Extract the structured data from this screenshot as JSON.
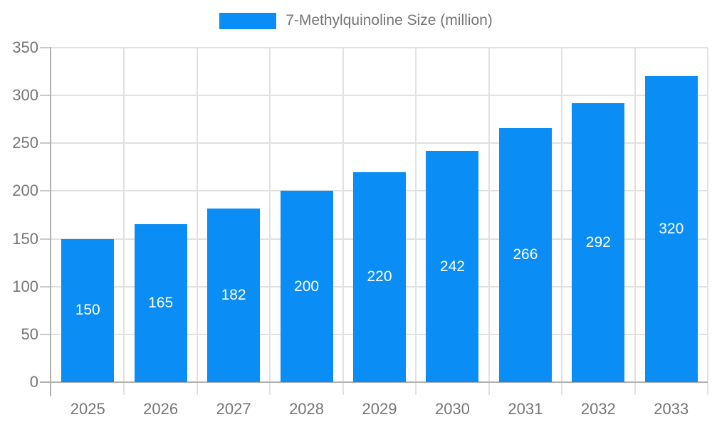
{
  "legend": {
    "label": "7-Methylquinoline Size (million)"
  },
  "colors": {
    "bar": "#0a8df4",
    "grid": "#e1e1e1",
    "axis": "#b0b0b0",
    "y_tick": "#c9c9c9",
    "tick_label": "#757575",
    "value_label": "#ffffff",
    "background": "#ffffff"
  },
  "chart_data": {
    "type": "bar",
    "title": "",
    "xlabel": "",
    "ylabel": "",
    "categories": [
      "2025",
      "2026",
      "2027",
      "2028",
      "2029",
      "2030",
      "2031",
      "2032",
      "2033"
    ],
    "values": [
      150,
      165,
      182,
      200,
      220,
      242,
      266,
      292,
      320
    ],
    "series_name": "7-Methylquinoline Size (million)",
    "ylim": [
      0,
      350
    ],
    "yticks": [
      0,
      50,
      100,
      150,
      200,
      250,
      300,
      350
    ],
    "grid": "on",
    "legend_position": "top-center",
    "value_label_position": "inside-center"
  }
}
